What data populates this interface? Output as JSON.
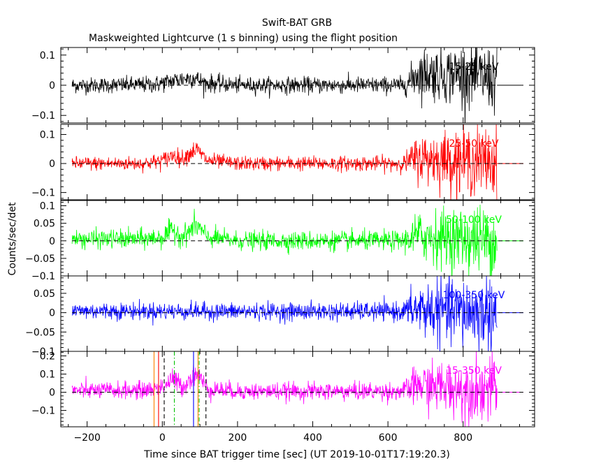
{
  "chart_data": {
    "type": "line",
    "title": "Swift-BAT GRB",
    "subtitle": "Maskweighted Lightcurve (1 s binning) using the flight position",
    "xlabel": "Time since BAT trigger time [sec] (UT 2019-10-01T17:19:20.3)",
    "ylabel": "Counts/sec/det",
    "xlim": [
      -270,
      990
    ],
    "xticks": [
      -200,
      0,
      200,
      400,
      600,
      800
    ],
    "panels": [
      {
        "band": "15-25 keV",
        "color": "#000000",
        "ylim": [
          -0.125,
          0.125
        ],
        "yticks": [
          0.1,
          0,
          -0.1
        ],
        "yticklabels": [
          "0.1",
          "0",
          "−0.1"
        ],
        "data_range": [
          -240,
          890
        ],
        "profile": [
          [
            -240,
            0,
            0.013
          ],
          [
            -150,
            0,
            0.013
          ],
          [
            -20,
            0.002,
            0.014
          ],
          [
            40,
            0.018,
            0.016
          ],
          [
            60,
            0.022,
            0.016
          ],
          [
            85,
            0.025,
            0.016
          ],
          [
            110,
            0.008,
            0.015
          ],
          [
            200,
            0,
            0.013
          ],
          [
            640,
            0,
            0.014
          ],
          [
            660,
            0.015,
            0.025
          ],
          [
            680,
            0.04,
            0.04
          ],
          [
            800,
            0.035,
            0.05
          ],
          [
            890,
            0.02,
            0.055
          ]
        ]
      },
      {
        "band": "25-50 keV",
        "color": "#ff0000",
        "ylim": [
          -0.125,
          0.135
        ],
        "yticks": [
          0.1,
          0,
          -0.1
        ],
        "yticklabels": [
          "0.1",
          "0",
          "−0.1"
        ],
        "data_range": [
          -240,
          890
        ],
        "profile": [
          [
            -240,
            0,
            0.012
          ],
          [
            -50,
            0,
            0.012
          ],
          [
            0,
            0.01,
            0.014
          ],
          [
            30,
            0.03,
            0.015
          ],
          [
            50,
            0.015,
            0.014
          ],
          [
            90,
            0.05,
            0.016
          ],
          [
            120,
            0.01,
            0.013
          ],
          [
            200,
            0,
            0.012
          ],
          [
            640,
            0,
            0.013
          ],
          [
            680,
            0.02,
            0.04
          ],
          [
            800,
            0.01,
            0.055
          ],
          [
            890,
            0.005,
            0.06
          ]
        ]
      },
      {
        "band": "50-100 keV",
        "color": "#00ff00",
        "ylim": [
          -0.1,
          0.115
        ],
        "yticks": [
          0.1,
          0.05,
          0,
          -0.05,
          -0.1
        ],
        "yticklabels": [
          "0.1",
          "0.05",
          "0",
          "−0.05",
          "−0.1"
        ],
        "data_range": [
          -240,
          890
        ],
        "profile": [
          [
            -240,
            0.005,
            0.013
          ],
          [
            -50,
            0.005,
            0.014
          ],
          [
            0,
            0.01,
            0.015
          ],
          [
            30,
            0.03,
            0.017
          ],
          [
            55,
            0.012,
            0.015
          ],
          [
            90,
            0.045,
            0.018
          ],
          [
            120,
            0.01,
            0.014
          ],
          [
            200,
            0,
            0.013
          ],
          [
            640,
            0,
            0.014
          ],
          [
            680,
            0.015,
            0.035
          ],
          [
            800,
            0.005,
            0.045
          ],
          [
            890,
            0,
            0.05
          ]
        ]
      },
      {
        "band": "100-350 keV",
        "color": "#0000ff",
        "ylim": [
          -0.1,
          0.095
        ],
        "yticks": [
          0.05,
          0,
          -0.05,
          -0.1
        ],
        "yticklabels": [
          "0.05",
          "0",
          "−0.05",
          "−0.1"
        ],
        "data_range": [
          -240,
          890
        ],
        "profile": [
          [
            -240,
            0.005,
            0.011
          ],
          [
            200,
            0.003,
            0.011
          ],
          [
            640,
            0.003,
            0.012
          ],
          [
            680,
            0.01,
            0.035
          ],
          [
            800,
            0,
            0.045
          ],
          [
            890,
            0,
            0.05
          ]
        ]
      },
      {
        "band": "15-350 keV",
        "color": "#ff00ff",
        "ylim": [
          -0.19,
          0.225
        ],
        "yticks": [
          0.2,
          0.1,
          0,
          -0.1
        ],
        "yticklabels": [
          "0.2",
          "0.1",
          "0",
          "−0.1"
        ],
        "data_range": [
          -240,
          890
        ],
        "profile": [
          [
            -240,
            0.01,
            0.022
          ],
          [
            -50,
            0.01,
            0.024
          ],
          [
            0,
            0.03,
            0.028
          ],
          [
            30,
            0.07,
            0.03
          ],
          [
            55,
            0.03,
            0.028
          ],
          [
            90,
            0.11,
            0.032
          ],
          [
            120,
            0.02,
            0.026
          ],
          [
            200,
            0.005,
            0.023
          ],
          [
            640,
            0.005,
            0.025
          ],
          [
            680,
            0.04,
            0.06
          ],
          [
            800,
            0.02,
            0.08
          ],
          [
            890,
            0.015,
            0.09
          ]
        ]
      }
    ],
    "markers": [
      {
        "x": -22,
        "color": "#ff7f00",
        "style": "solid"
      },
      {
        "x": -10,
        "color": "#ff0000",
        "style": "solid"
      },
      {
        "x": 5,
        "color": "#000000",
        "style": "dashed"
      },
      {
        "x": 32,
        "color": "#00c000",
        "style": "dashdot"
      },
      {
        "x": 83,
        "color": "#0000ff",
        "style": "solid"
      },
      {
        "x": 95,
        "color": "#ff7f00",
        "style": "solid"
      },
      {
        "x": 98,
        "color": "#00c000",
        "style": "dashdot"
      },
      {
        "x": 116,
        "color": "#000000",
        "style": "dashed"
      }
    ]
  }
}
